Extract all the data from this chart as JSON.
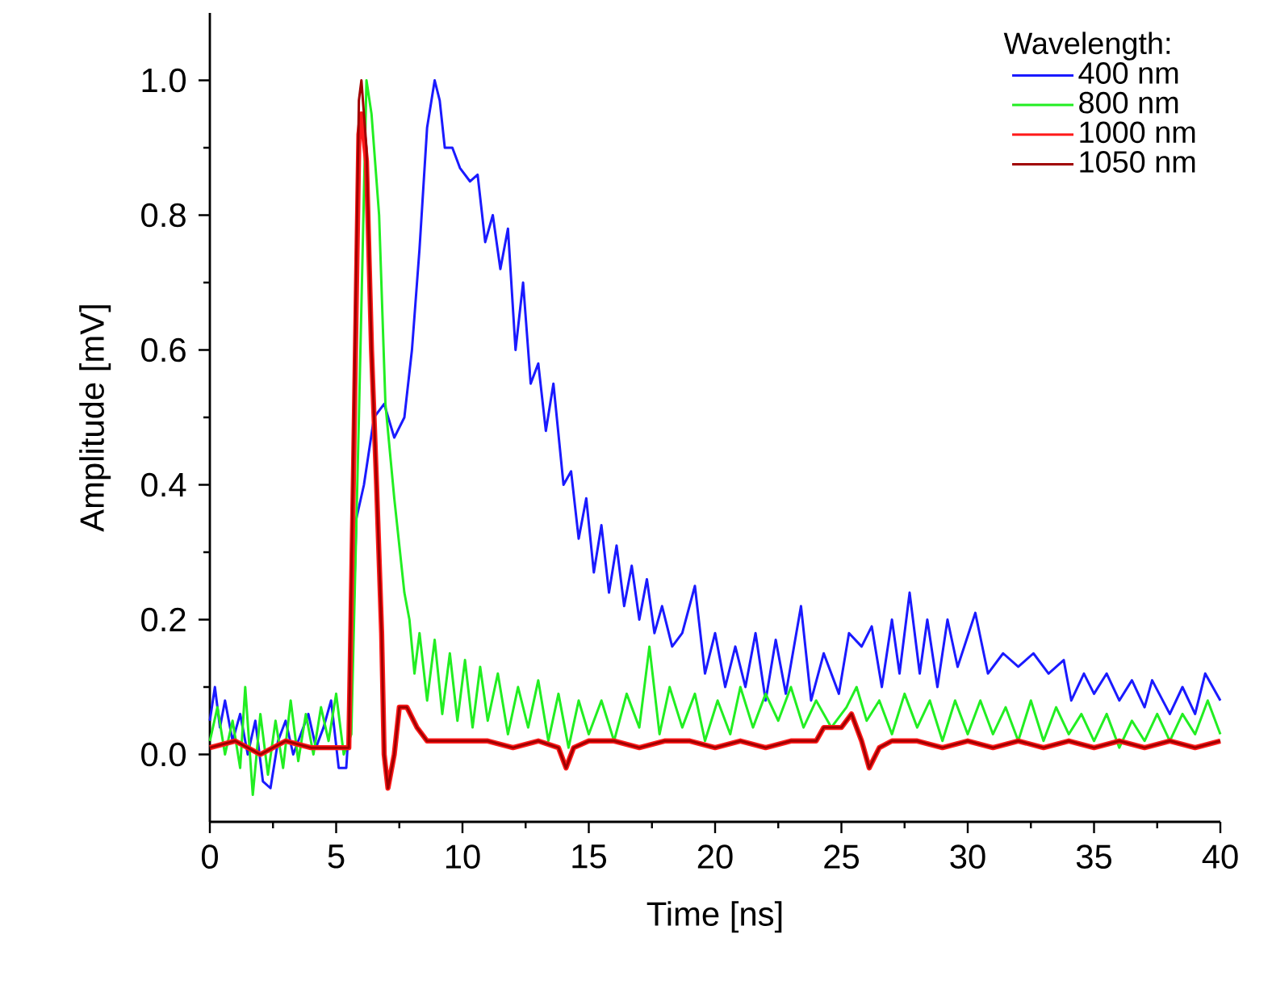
{
  "chart_data": {
    "type": "line",
    "xlabel": "Time [ns]",
    "ylabel": "Amplitude [mV]",
    "legend_title": "Wavelength:",
    "legend": "top right",
    "xlim": [
      0,
      40
    ],
    "ylim": [
      -0.1,
      1.1
    ],
    "xticks": [
      0,
      5,
      10,
      15,
      20,
      25,
      30,
      35,
      40
    ],
    "yticks": [
      {
        "value": 0,
        "label": "0.0"
      },
      {
        "value": 0.2,
        "label": "0.2"
      },
      {
        "value": 0.4,
        "label": "0.4"
      },
      {
        "value": 0.6,
        "label": "0.6"
      },
      {
        "value": 0.8,
        "label": "0.8"
      },
      {
        "value": 1,
        "label": "1.0"
      }
    ],
    "series": [
      {
        "name": "400 nm",
        "color": "#1a1aff",
        "x": [
          0,
          0.2,
          0.4,
          0.6,
          0.9,
          1.2,
          1.5,
          1.8,
          2.1,
          2.4,
          2.7,
          3.0,
          3.3,
          3.6,
          3.9,
          4.2,
          4.5,
          4.8,
          5.1,
          5.4,
          5.6,
          5.8,
          6.1,
          6.5,
          6.9,
          7.3,
          7.7,
          8.0,
          8.3,
          8.6,
          8.9,
          9.1,
          9.3,
          9.6,
          9.9,
          10.3,
          10.6,
          10.9,
          11.2,
          11.5,
          11.8,
          12.1,
          12.4,
          12.7,
          13.0,
          13.3,
          13.6,
          14.0,
          14.3,
          14.6,
          14.9,
          15.2,
          15.5,
          15.8,
          16.1,
          16.4,
          16.7,
          17.0,
          17.3,
          17.6,
          17.9,
          18.3,
          18.7,
          19.2,
          19.6,
          20.0,
          20.4,
          20.8,
          21.2,
          21.6,
          22.0,
          22.4,
          22.8,
          23.4,
          23.8,
          24.3,
          24.9,
          25.3,
          25.8,
          26.2,
          26.6,
          27.0,
          27.3,
          27.7,
          28.1,
          28.4,
          28.8,
          29.2,
          29.6,
          30.3,
          30.8,
          31.4,
          32.0,
          32.6,
          33.2,
          33.8,
          34.1,
          34.6,
          35.0,
          35.5,
          36.0,
          36.5,
          37.0,
          37.3,
          38.0,
          38.5,
          39.0,
          39.4,
          40.0
        ],
        "values": [
          0.05,
          0.1,
          0.04,
          0.08,
          0.02,
          0.06,
          0.0,
          0.05,
          -0.04,
          -0.05,
          0.02,
          0.05,
          0.0,
          0.03,
          0.06,
          0.01,
          0.04,
          0.08,
          -0.02,
          -0.02,
          0.1,
          0.35,
          0.4,
          0.5,
          0.52,
          0.47,
          0.5,
          0.6,
          0.75,
          0.93,
          1.0,
          0.97,
          0.9,
          0.9,
          0.87,
          0.85,
          0.86,
          0.76,
          0.8,
          0.72,
          0.78,
          0.6,
          0.7,
          0.55,
          0.58,
          0.48,
          0.55,
          0.4,
          0.42,
          0.32,
          0.38,
          0.27,
          0.34,
          0.24,
          0.31,
          0.22,
          0.28,
          0.2,
          0.26,
          0.18,
          0.22,
          0.16,
          0.18,
          0.25,
          0.12,
          0.18,
          0.1,
          0.16,
          0.1,
          0.18,
          0.08,
          0.17,
          0.09,
          0.22,
          0.08,
          0.15,
          0.09,
          0.18,
          0.16,
          0.19,
          0.1,
          0.2,
          0.12,
          0.24,
          0.12,
          0.2,
          0.1,
          0.2,
          0.13,
          0.21,
          0.12,
          0.15,
          0.13,
          0.15,
          0.12,
          0.14,
          0.08,
          0.12,
          0.09,
          0.12,
          0.08,
          0.11,
          0.07,
          0.11,
          0.06,
          0.1,
          0.06,
          0.12,
          0.08
        ]
      },
      {
        "name": "800 nm",
        "color": "#22ee22",
        "x": [
          0,
          0.3,
          0.6,
          0.9,
          1.2,
          1.4,
          1.7,
          2.0,
          2.3,
          2.6,
          2.9,
          3.2,
          3.5,
          3.8,
          4.1,
          4.4,
          4.7,
          5.0,
          5.3,
          5.6,
          5.9,
          6.2,
          6.4,
          6.7,
          6.95,
          7.3,
          7.7,
          7.9,
          8.1,
          8.3,
          8.6,
          8.9,
          9.2,
          9.5,
          9.8,
          10.1,
          10.4,
          10.7,
          11.0,
          11.4,
          11.8,
          12.2,
          12.6,
          13.0,
          13.4,
          13.8,
          14.2,
          14.6,
          15.0,
          15.5,
          16.0,
          16.5,
          17.0,
          17.4,
          17.8,
          18.2,
          18.7,
          19.2,
          19.6,
          20.1,
          20.6,
          21.0,
          21.5,
          22.0,
          22.5,
          23.0,
          23.5,
          24.0,
          24.6,
          25.2,
          25.6,
          26.0,
          26.5,
          27.0,
          27.5,
          28.0,
          28.5,
          29.0,
          29.5,
          30.0,
          30.5,
          31.0,
          31.5,
          32.0,
          32.5,
          33.0,
          33.5,
          34.0,
          34.5,
          35.0,
          35.5,
          36.0,
          36.5,
          37.0,
          37.5,
          38.0,
          38.5,
          39.0,
          39.5,
          40.0
        ],
        "values": [
          0.02,
          0.07,
          0.0,
          0.05,
          -0.02,
          0.1,
          -0.06,
          0.06,
          -0.03,
          0.05,
          -0.02,
          0.08,
          -0.01,
          0.06,
          0.0,
          0.07,
          0.02,
          0.09,
          0.0,
          0.03,
          0.5,
          1.0,
          0.95,
          0.8,
          0.52,
          0.38,
          0.24,
          0.2,
          0.12,
          0.18,
          0.08,
          0.17,
          0.06,
          0.15,
          0.05,
          0.14,
          0.04,
          0.13,
          0.05,
          0.12,
          0.03,
          0.1,
          0.04,
          0.11,
          0.02,
          0.09,
          0.01,
          0.08,
          0.03,
          0.08,
          0.02,
          0.09,
          0.04,
          0.16,
          0.03,
          0.1,
          0.04,
          0.09,
          0.02,
          0.08,
          0.03,
          0.1,
          0.04,
          0.09,
          0.05,
          0.1,
          0.04,
          0.08,
          0.04,
          0.07,
          0.1,
          0.05,
          0.08,
          0.03,
          0.09,
          0.04,
          0.08,
          0.02,
          0.08,
          0.03,
          0.08,
          0.03,
          0.07,
          0.02,
          0.08,
          0.02,
          0.07,
          0.03,
          0.06,
          0.02,
          0.06,
          0.01,
          0.05,
          0.02,
          0.06,
          0.02,
          0.06,
          0.03,
          0.08,
          0.03
        ]
      },
      {
        "name": "1000 nm",
        "color": "#ff1a1a",
        "x": [
          0,
          1.0,
          2.0,
          3.0,
          4.0,
          5.0,
          5.5,
          5.7,
          5.9,
          6.0,
          6.2,
          6.4,
          6.6,
          6.8,
          6.9,
          7.05,
          7.3,
          7.5,
          7.8,
          8.2,
          8.6,
          9.0,
          10.0,
          11.0,
          12.0,
          13.0,
          13.8,
          14.1,
          14.4,
          15.0,
          16.0,
          17.0,
          18.0,
          19.0,
          20.0,
          21.0,
          22.0,
          23.0,
          24.0,
          24.3,
          25.0,
          25.4,
          25.8,
          26.1,
          26.5,
          27.0,
          28.0,
          29.0,
          30.0,
          31.0,
          32.0,
          33.0,
          34.0,
          35.0,
          36.0,
          37.0,
          38.0,
          39.0,
          40.0
        ],
        "values": [
          0.01,
          0.02,
          0.0,
          0.02,
          0.01,
          0.01,
          0.01,
          0.45,
          0.92,
          0.95,
          0.88,
          0.6,
          0.4,
          0.18,
          0.0,
          -0.05,
          0.0,
          0.07,
          0.07,
          0.04,
          0.02,
          0.02,
          0.02,
          0.02,
          0.01,
          0.02,
          0.01,
          -0.02,
          0.01,
          0.02,
          0.02,
          0.01,
          0.02,
          0.02,
          0.01,
          0.02,
          0.01,
          0.02,
          0.02,
          0.04,
          0.04,
          0.06,
          0.02,
          -0.02,
          0.01,
          0.02,
          0.02,
          0.01,
          0.02,
          0.01,
          0.02,
          0.01,
          0.02,
          0.01,
          0.02,
          0.01,
          0.02,
          0.01,
          0.02
        ]
      },
      {
        "name": "1050 nm",
        "color": "#a00000",
        "x": [
          0,
          1.0,
          2.0,
          3.0,
          4.0,
          5.0,
          5.5,
          5.7,
          5.9,
          6.0,
          6.2,
          6.4,
          6.6,
          6.8,
          6.9,
          7.05,
          7.3,
          7.5,
          7.8,
          8.2,
          8.6,
          9.0,
          10.0,
          11.0,
          12.0,
          13.0,
          13.8,
          14.1,
          14.4,
          15.0,
          16.0,
          17.0,
          18.0,
          19.0,
          20.0,
          21.0,
          22.0,
          23.0,
          24.0,
          24.3,
          25.0,
          25.4,
          25.8,
          26.1,
          26.5,
          27.0,
          28.0,
          29.0,
          30.0,
          31.0,
          32.0,
          33.0,
          34.0,
          35.0,
          36.0,
          37.0,
          38.0,
          39.0,
          40.0
        ],
        "values": [
          0.01,
          0.02,
          0.0,
          0.02,
          0.01,
          0.01,
          0.01,
          0.5,
          0.97,
          1.0,
          0.9,
          0.6,
          0.4,
          0.18,
          0.0,
          -0.05,
          0.0,
          0.07,
          0.07,
          0.04,
          0.02,
          0.02,
          0.02,
          0.02,
          0.01,
          0.02,
          0.01,
          -0.02,
          0.01,
          0.02,
          0.02,
          0.01,
          0.02,
          0.02,
          0.01,
          0.02,
          0.01,
          0.02,
          0.02,
          0.04,
          0.04,
          0.06,
          0.02,
          -0.02,
          0.01,
          0.02,
          0.02,
          0.01,
          0.02,
          0.01,
          0.02,
          0.01,
          0.02,
          0.01,
          0.02,
          0.01,
          0.02,
          0.01,
          0.02
        ]
      }
    ]
  }
}
